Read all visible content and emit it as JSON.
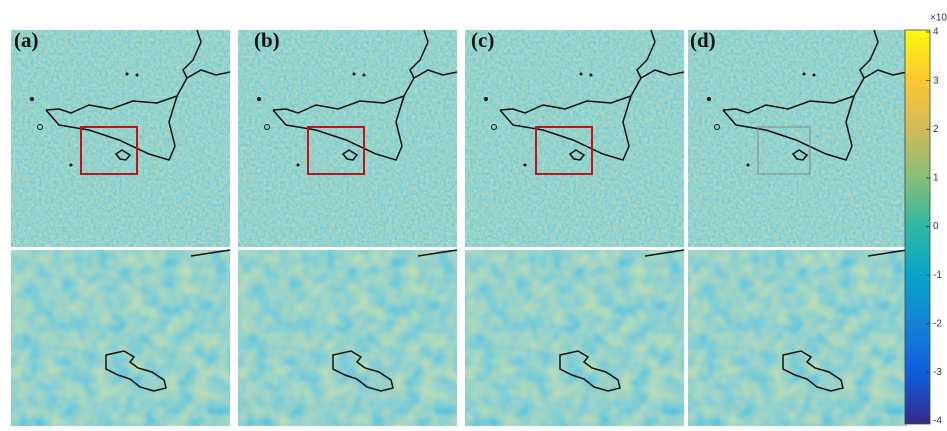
{
  "panels": [
    {
      "label": "(a)"
    },
    {
      "label": "(b)"
    },
    {
      "label": "(c)"
    },
    {
      "label": "(d)"
    }
  ],
  "colorbar": {
    "exponent_label": "×10",
    "lim": [
      -4,
      4
    ],
    "ticks": [
      -4,
      -3,
      -2,
      -1,
      0,
      1,
      2,
      3,
      4
    ]
  }
}
